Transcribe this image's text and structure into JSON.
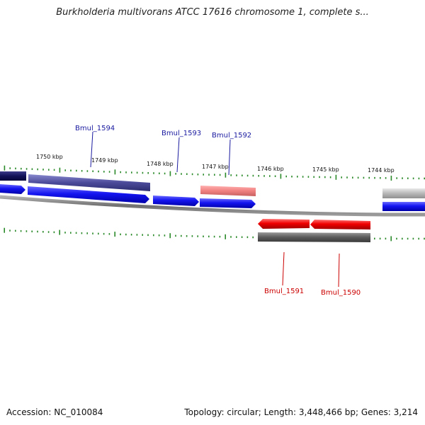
{
  "title": "Burkholderia multivorans ATCC 17616 chromosome 1, complete s...",
  "footer": {
    "accession": "Accession: NC_010084",
    "summary": "Topology: circular; Length: 3,448,466 bp; Genes: 3,214"
  },
  "ruler_labels": [
    "1750 kbp",
    "1749 kbp",
    "1748 kbp",
    "1747 kbp",
    "1746 kbp",
    "1745 kbp",
    "1744 kbp"
  ],
  "gene_labels": [
    {
      "name": "Bmul_1594",
      "strand": "forward",
      "color": "#1a1aa0"
    },
    {
      "name": "Bmul_1593",
      "strand": "forward",
      "color": "#1a1aa0"
    },
    {
      "name": "Bmul_1592",
      "strand": "forward",
      "color": "#1a1aa0"
    },
    {
      "name": "Bmul_1591",
      "strand": "reverse",
      "color": "#cc0000"
    },
    {
      "name": "Bmul_1590",
      "strand": "reverse",
      "color": "#cc0000"
    }
  ],
  "colors": {
    "forward_cds": "#1010e8",
    "reverse_cds": "#e80000",
    "tick": "#2a8a2a",
    "backbone": "#7a7a7a"
  }
}
